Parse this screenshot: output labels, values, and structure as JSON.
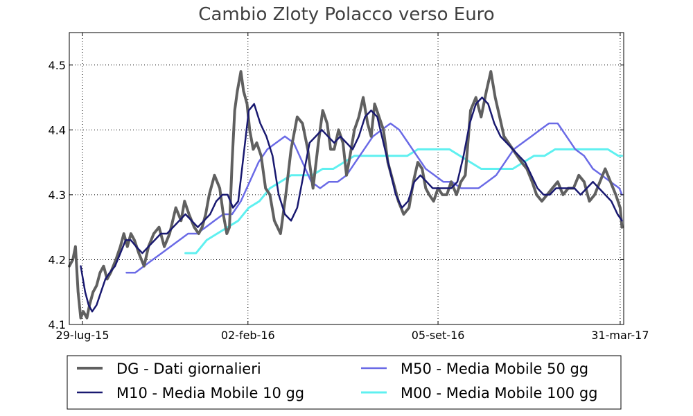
{
  "chart_data": {
    "type": "line",
    "title": "Cambio Zloty  Polacco verso Euro",
    "xlabel": "",
    "ylabel": "",
    "x_ticks": [
      "29-lug-15",
      "02-feb-16",
      "05-set-16",
      "31-mar-17"
    ],
    "x_tick_dates": [
      "2015-07-29",
      "2016-02-02",
      "2016-09-05",
      "2017-03-31"
    ],
    "x_range": [
      "2015-07-14",
      "2017-04-04"
    ],
    "y_ticks": [
      "4.1",
      "4.2",
      "4.3",
      "4.4",
      "4.5"
    ],
    "ylim": [
      4.1,
      4.55
    ],
    "grid": true,
    "legend_position": "bottom",
    "series": [
      {
        "name": "DG - Dati giornalieri",
        "color": "#606060",
        "x": [
          "2015-07-14",
          "2015-07-18",
          "2015-07-21",
          "2015-07-24",
          "2015-07-27",
          "2015-07-30",
          "2015-08-03",
          "2015-08-06",
          "2015-08-10",
          "2015-08-14",
          "2015-08-18",
          "2015-08-22",
          "2015-08-26",
          "2015-08-30",
          "2015-09-05",
          "2015-09-10",
          "2015-09-14",
          "2015-09-18",
          "2015-09-22",
          "2015-09-26",
          "2015-10-01",
          "2015-10-07",
          "2015-10-12",
          "2015-10-18",
          "2015-10-24",
          "2015-10-30",
          "2015-11-05",
          "2015-11-12",
          "2015-11-18",
          "2015-11-22",
          "2015-11-27",
          "2015-12-03",
          "2015-12-08",
          "2015-12-12",
          "2015-12-16",
          "2015-12-20",
          "2015-12-26",
          "2016-01-01",
          "2016-01-05",
          "2016-01-09",
          "2016-01-12",
          "2016-01-15",
          "2016-01-18",
          "2016-01-21",
          "2016-01-25",
          "2016-01-28",
          "2016-02-01",
          "2016-02-04",
          "2016-02-08",
          "2016-02-12",
          "2016-02-17",
          "2016-02-22",
          "2016-02-27",
          "2016-03-03",
          "2016-03-10",
          "2016-03-16",
          "2016-03-22",
          "2016-03-29",
          "2016-04-04",
          "2016-04-10",
          "2016-04-16",
          "2016-04-22",
          "2016-04-27",
          "2016-05-02",
          "2016-05-06",
          "2016-05-10",
          "2016-05-15",
          "2016-05-20",
          "2016-05-24",
          "2016-05-28",
          "2016-06-02",
          "2016-06-07",
          "2016-06-12",
          "2016-06-17",
          "2016-06-21",
          "2016-06-25",
          "2016-06-30",
          "2016-07-05",
          "2016-07-10",
          "2016-07-16",
          "2016-07-22",
          "2016-07-28",
          "2016-08-03",
          "2016-08-08",
          "2016-08-13",
          "2016-08-18",
          "2016-08-22",
          "2016-08-26",
          "2016-08-31",
          "2016-09-05",
          "2016-09-10",
          "2016-09-15",
          "2016-09-20",
          "2016-09-26",
          "2016-10-01",
          "2016-10-06",
          "2016-10-12",
          "2016-10-18",
          "2016-10-24",
          "2016-10-30",
          "2016-11-04",
          "2016-11-09",
          "2016-11-14",
          "2016-11-19",
          "2016-11-24",
          "2016-11-29",
          "2016-12-04",
          "2016-12-09",
          "2016-12-15",
          "2016-12-21",
          "2016-12-26",
          "2017-01-01",
          "2017-01-07",
          "2017-01-13",
          "2017-01-19",
          "2017-01-25",
          "2017-01-31",
          "2017-02-06",
          "2017-02-12",
          "2017-02-18",
          "2017-02-24",
          "2017-03-02",
          "2017-03-08",
          "2017-03-14",
          "2017-03-20",
          "2017-03-26",
          "2017-03-31",
          "2017-04-02"
        ],
        "values": [
          4.19,
          4.2,
          4.22,
          4.15,
          4.11,
          4.12,
          4.11,
          4.13,
          4.15,
          4.16,
          4.18,
          4.19,
          4.17,
          4.18,
          4.2,
          4.22,
          4.24,
          4.22,
          4.24,
          4.23,
          4.21,
          4.19,
          4.22,
          4.24,
          4.25,
          4.22,
          4.24,
          4.28,
          4.26,
          4.29,
          4.27,
          4.25,
          4.24,
          4.25,
          4.27,
          4.3,
          4.33,
          4.31,
          4.27,
          4.24,
          4.25,
          4.35,
          4.43,
          4.46,
          4.49,
          4.46,
          4.44,
          4.4,
          4.37,
          4.38,
          4.36,
          4.31,
          4.3,
          4.26,
          4.24,
          4.3,
          4.37,
          4.42,
          4.41,
          4.37,
          4.31,
          4.38,
          4.43,
          4.41,
          4.37,
          4.37,
          4.4,
          4.38,
          4.33,
          4.36,
          4.4,
          4.42,
          4.45,
          4.41,
          4.39,
          4.44,
          4.42,
          4.4,
          4.35,
          4.32,
          4.29,
          4.27,
          4.28,
          4.32,
          4.35,
          4.34,
          4.31,
          4.3,
          4.29,
          4.31,
          4.3,
          4.3,
          4.32,
          4.3,
          4.32,
          4.33,
          4.43,
          4.45,
          4.42,
          4.46,
          4.49,
          4.45,
          4.42,
          4.39,
          4.38,
          4.37,
          4.36,
          4.35,
          4.34,
          4.32,
          4.3,
          4.29,
          4.3,
          4.31,
          4.32,
          4.3,
          4.31,
          4.31,
          4.33,
          4.32,
          4.29,
          4.3,
          4.32,
          4.34,
          4.32,
          4.3,
          4.28,
          4.25
        ]
      },
      {
        "name": "M10 - Media Mobile 10 gg",
        "color": "#191970",
        "x": [
          "2015-07-27",
          "2015-08-01",
          "2015-08-05",
          "2015-08-09",
          "2015-08-14",
          "2015-08-19",
          "2015-08-24",
          "2015-08-29",
          "2015-09-04",
          "2015-09-10",
          "2015-09-16",
          "2015-09-22",
          "2015-09-28",
          "2015-10-05",
          "2015-10-12",
          "2015-10-19",
          "2015-10-26",
          "2015-11-02",
          "2015-11-09",
          "2015-11-16",
          "2015-11-23",
          "2015-11-30",
          "2015-12-07",
          "2015-12-14",
          "2015-12-21",
          "2015-12-28",
          "2016-01-04",
          "2016-01-10",
          "2016-01-16",
          "2016-01-22",
          "2016-01-28",
          "2016-02-03",
          "2016-02-09",
          "2016-02-16",
          "2016-02-23",
          "2016-03-01",
          "2016-03-08",
          "2016-03-15",
          "2016-03-22",
          "2016-03-29",
          "2016-04-05",
          "2016-04-12",
          "2016-04-19",
          "2016-04-26",
          "2016-05-03",
          "2016-05-10",
          "2016-05-17",
          "2016-05-24",
          "2016-05-31",
          "2016-06-07",
          "2016-06-14",
          "2016-06-21",
          "2016-06-28",
          "2016-07-05",
          "2016-07-12",
          "2016-07-19",
          "2016-07-26",
          "2016-08-02",
          "2016-08-09",
          "2016-08-16",
          "2016-08-23",
          "2016-08-30",
          "2016-09-06",
          "2016-09-13",
          "2016-09-20",
          "2016-09-27",
          "2016-10-04",
          "2016-10-11",
          "2016-10-18",
          "2016-10-25",
          "2016-11-01",
          "2016-11-08",
          "2016-11-15",
          "2016-11-22",
          "2016-11-29",
          "2016-12-06",
          "2016-12-13",
          "2016-12-20",
          "2016-12-27",
          "2017-01-03",
          "2017-01-10",
          "2017-01-17",
          "2017-01-24",
          "2017-01-31",
          "2017-02-07",
          "2017-02-14",
          "2017-02-21",
          "2017-02-28",
          "2017-03-07",
          "2017-03-14",
          "2017-03-21",
          "2017-03-28",
          "2017-04-02"
        ],
        "values": [
          4.19,
          4.15,
          4.13,
          4.12,
          4.13,
          4.15,
          4.17,
          4.18,
          4.19,
          4.21,
          4.23,
          4.23,
          4.22,
          4.21,
          4.22,
          4.23,
          4.24,
          4.24,
          4.25,
          4.26,
          4.27,
          4.26,
          4.25,
          4.26,
          4.27,
          4.29,
          4.3,
          4.3,
          4.28,
          4.29,
          4.36,
          4.43,
          4.44,
          4.41,
          4.39,
          4.36,
          4.3,
          4.27,
          4.26,
          4.28,
          4.33,
          4.38,
          4.39,
          4.4,
          4.39,
          4.38,
          4.39,
          4.38,
          4.37,
          4.39,
          4.42,
          4.43,
          4.42,
          4.38,
          4.34,
          4.3,
          4.28,
          4.29,
          4.32,
          4.33,
          4.32,
          4.31,
          4.31,
          4.31,
          4.31,
          4.32,
          4.36,
          4.41,
          4.44,
          4.45,
          4.44,
          4.41,
          4.39,
          4.38,
          4.37,
          4.36,
          4.35,
          4.33,
          4.31,
          4.3,
          4.3,
          4.31,
          4.31,
          4.31,
          4.31,
          4.3,
          4.31,
          4.32,
          4.31,
          4.3,
          4.29,
          4.27,
          4.26
        ]
      },
      {
        "name": "M50 - Media Mobile 50 gg",
        "color": "#6a6ae6",
        "x": [
          "2015-09-17",
          "2015-09-27",
          "2015-10-07",
          "2015-10-17",
          "2015-10-27",
          "2015-11-06",
          "2015-11-16",
          "2015-11-26",
          "2015-12-06",
          "2015-12-16",
          "2015-12-26",
          "2016-01-05",
          "2016-01-15",
          "2016-01-25",
          "2016-02-04",
          "2016-02-14",
          "2016-02-24",
          "2016-03-05",
          "2016-03-15",
          "2016-03-25",
          "2016-04-04",
          "2016-04-14",
          "2016-04-24",
          "2016-05-04",
          "2016-05-14",
          "2016-05-24",
          "2016-06-03",
          "2016-06-13",
          "2016-06-23",
          "2016-07-03",
          "2016-07-13",
          "2016-07-23",
          "2016-08-02",
          "2016-08-12",
          "2016-08-22",
          "2016-09-01",
          "2016-09-11",
          "2016-09-21",
          "2016-10-01",
          "2016-10-11",
          "2016-10-21",
          "2016-10-31",
          "2016-11-10",
          "2016-11-20",
          "2016-11-30",
          "2016-12-10",
          "2016-12-20",
          "2016-12-30",
          "2017-01-09",
          "2017-01-19",
          "2017-01-29",
          "2017-02-08",
          "2017-02-18",
          "2017-02-28",
          "2017-03-10",
          "2017-03-20",
          "2017-03-30",
          "2017-04-02"
        ],
        "values": [
          4.18,
          4.18,
          4.19,
          4.2,
          4.21,
          4.22,
          4.23,
          4.24,
          4.24,
          4.25,
          4.26,
          4.27,
          4.27,
          4.29,
          4.32,
          4.35,
          4.37,
          4.38,
          4.39,
          4.38,
          4.35,
          4.32,
          4.31,
          4.32,
          4.32,
          4.33,
          4.35,
          4.37,
          4.39,
          4.4,
          4.41,
          4.4,
          4.38,
          4.36,
          4.34,
          4.33,
          4.32,
          4.32,
          4.31,
          4.31,
          4.31,
          4.32,
          4.33,
          4.35,
          4.37,
          4.38,
          4.39,
          4.4,
          4.41,
          4.41,
          4.39,
          4.37,
          4.36,
          4.34,
          4.33,
          4.32,
          4.31,
          4.3
        ]
      },
      {
        "name": "M00 - Media Mobile 100 gg",
        "color": "#5ff0f0",
        "x": [
          "2015-11-23",
          "2015-12-05",
          "2015-12-17",
          "2015-12-29",
          "2016-01-10",
          "2016-01-22",
          "2016-02-03",
          "2016-02-15",
          "2016-02-27",
          "2016-03-10",
          "2016-03-22",
          "2016-04-03",
          "2016-04-15",
          "2016-04-27",
          "2016-05-09",
          "2016-05-21",
          "2016-06-02",
          "2016-06-14",
          "2016-06-26",
          "2016-07-08",
          "2016-07-20",
          "2016-08-01",
          "2016-08-13",
          "2016-08-25",
          "2016-09-06",
          "2016-09-18",
          "2016-09-30",
          "2016-10-12",
          "2016-10-24",
          "2016-11-05",
          "2016-11-17",
          "2016-11-29",
          "2016-12-11",
          "2016-12-23",
          "2017-01-04",
          "2017-01-16",
          "2017-01-28",
          "2017-02-09",
          "2017-02-21",
          "2017-03-05",
          "2017-03-17",
          "2017-03-29",
          "2017-04-02"
        ],
        "values": [
          4.21,
          4.21,
          4.23,
          4.24,
          4.25,
          4.26,
          4.28,
          4.29,
          4.31,
          4.32,
          4.33,
          4.33,
          4.33,
          4.34,
          4.34,
          4.35,
          4.36,
          4.36,
          4.36,
          4.36,
          4.36,
          4.36,
          4.37,
          4.37,
          4.37,
          4.37,
          4.36,
          4.35,
          4.34,
          4.34,
          4.34,
          4.34,
          4.35,
          4.36,
          4.36,
          4.37,
          4.37,
          4.37,
          4.37,
          4.37,
          4.37,
          4.36,
          4.36
        ]
      }
    ]
  }
}
